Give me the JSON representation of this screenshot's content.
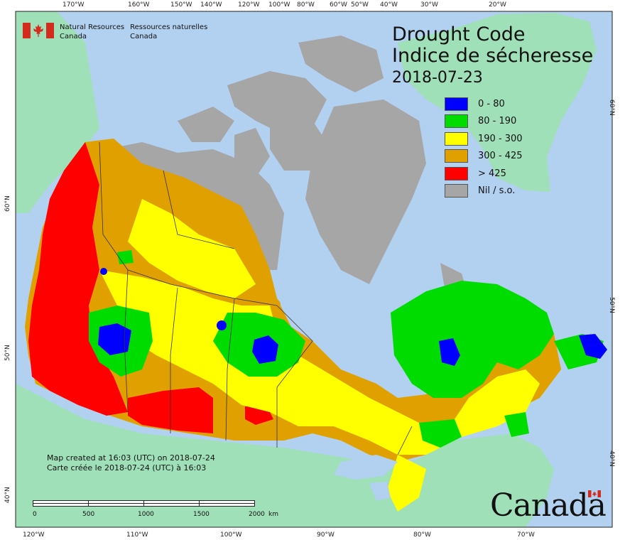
{
  "colors": {
    "ocean": "#b2d0f0",
    "us_land": "#9fe0b8",
    "nil": "#a6a6a6",
    "c0_80": "#0000ff",
    "c80_190": "#00dc00",
    "c190_300": "#ffff00",
    "c300_425": "#e0a000",
    "c425": "#ff0000",
    "flag_red": "#d52b1e"
  },
  "header": {
    "org_en_line1": "Natural Resources",
    "org_en_line2": "Canada",
    "org_fr_line1": "Ressources naturelles",
    "org_fr_line2": "Canada"
  },
  "title": {
    "line1": "Drought Code",
    "line2": "Indice de sécheresse",
    "date": "2018-07-23"
  },
  "legend": [
    {
      "label": "0 - 80",
      "color": "#0000ff"
    },
    {
      "label": "80 - 190",
      "color": "#00dc00"
    },
    {
      "label": "190 - 300",
      "color": "#ffff00"
    },
    {
      "label": "300 - 425",
      "color": "#e0a000"
    },
    {
      "label": "> 425",
      "color": "#ff0000"
    },
    {
      "label": "Nil / s.o.",
      "color": "#a6a6a6"
    }
  ],
  "graticule": {
    "top": [
      "170°W",
      "160°W",
      "150°W",
      "140°W",
      "120°W",
      "100°W",
      "80°W",
      "60°W",
      "50°W",
      "40°W",
      "30°W",
      "20°W"
    ],
    "bottom": [
      "120°W",
      "110°W",
      "100°W",
      "90°W",
      "80°W",
      "70°W"
    ],
    "left": [
      "60°N",
      "50°N",
      "40°N"
    ],
    "right": [
      "60°N",
      "50°N",
      "40°N"
    ]
  },
  "credits": {
    "line1": "Map created at 16:03 (UTC) on 2018-07-24",
    "line2": "Carte créée le 2018-07-24 (UTC) à 16:03"
  },
  "scale": {
    "labels": [
      "0",
      "500",
      "1000",
      "1500",
      "2000"
    ],
    "unit": "km"
  },
  "wordmark": "Canada"
}
